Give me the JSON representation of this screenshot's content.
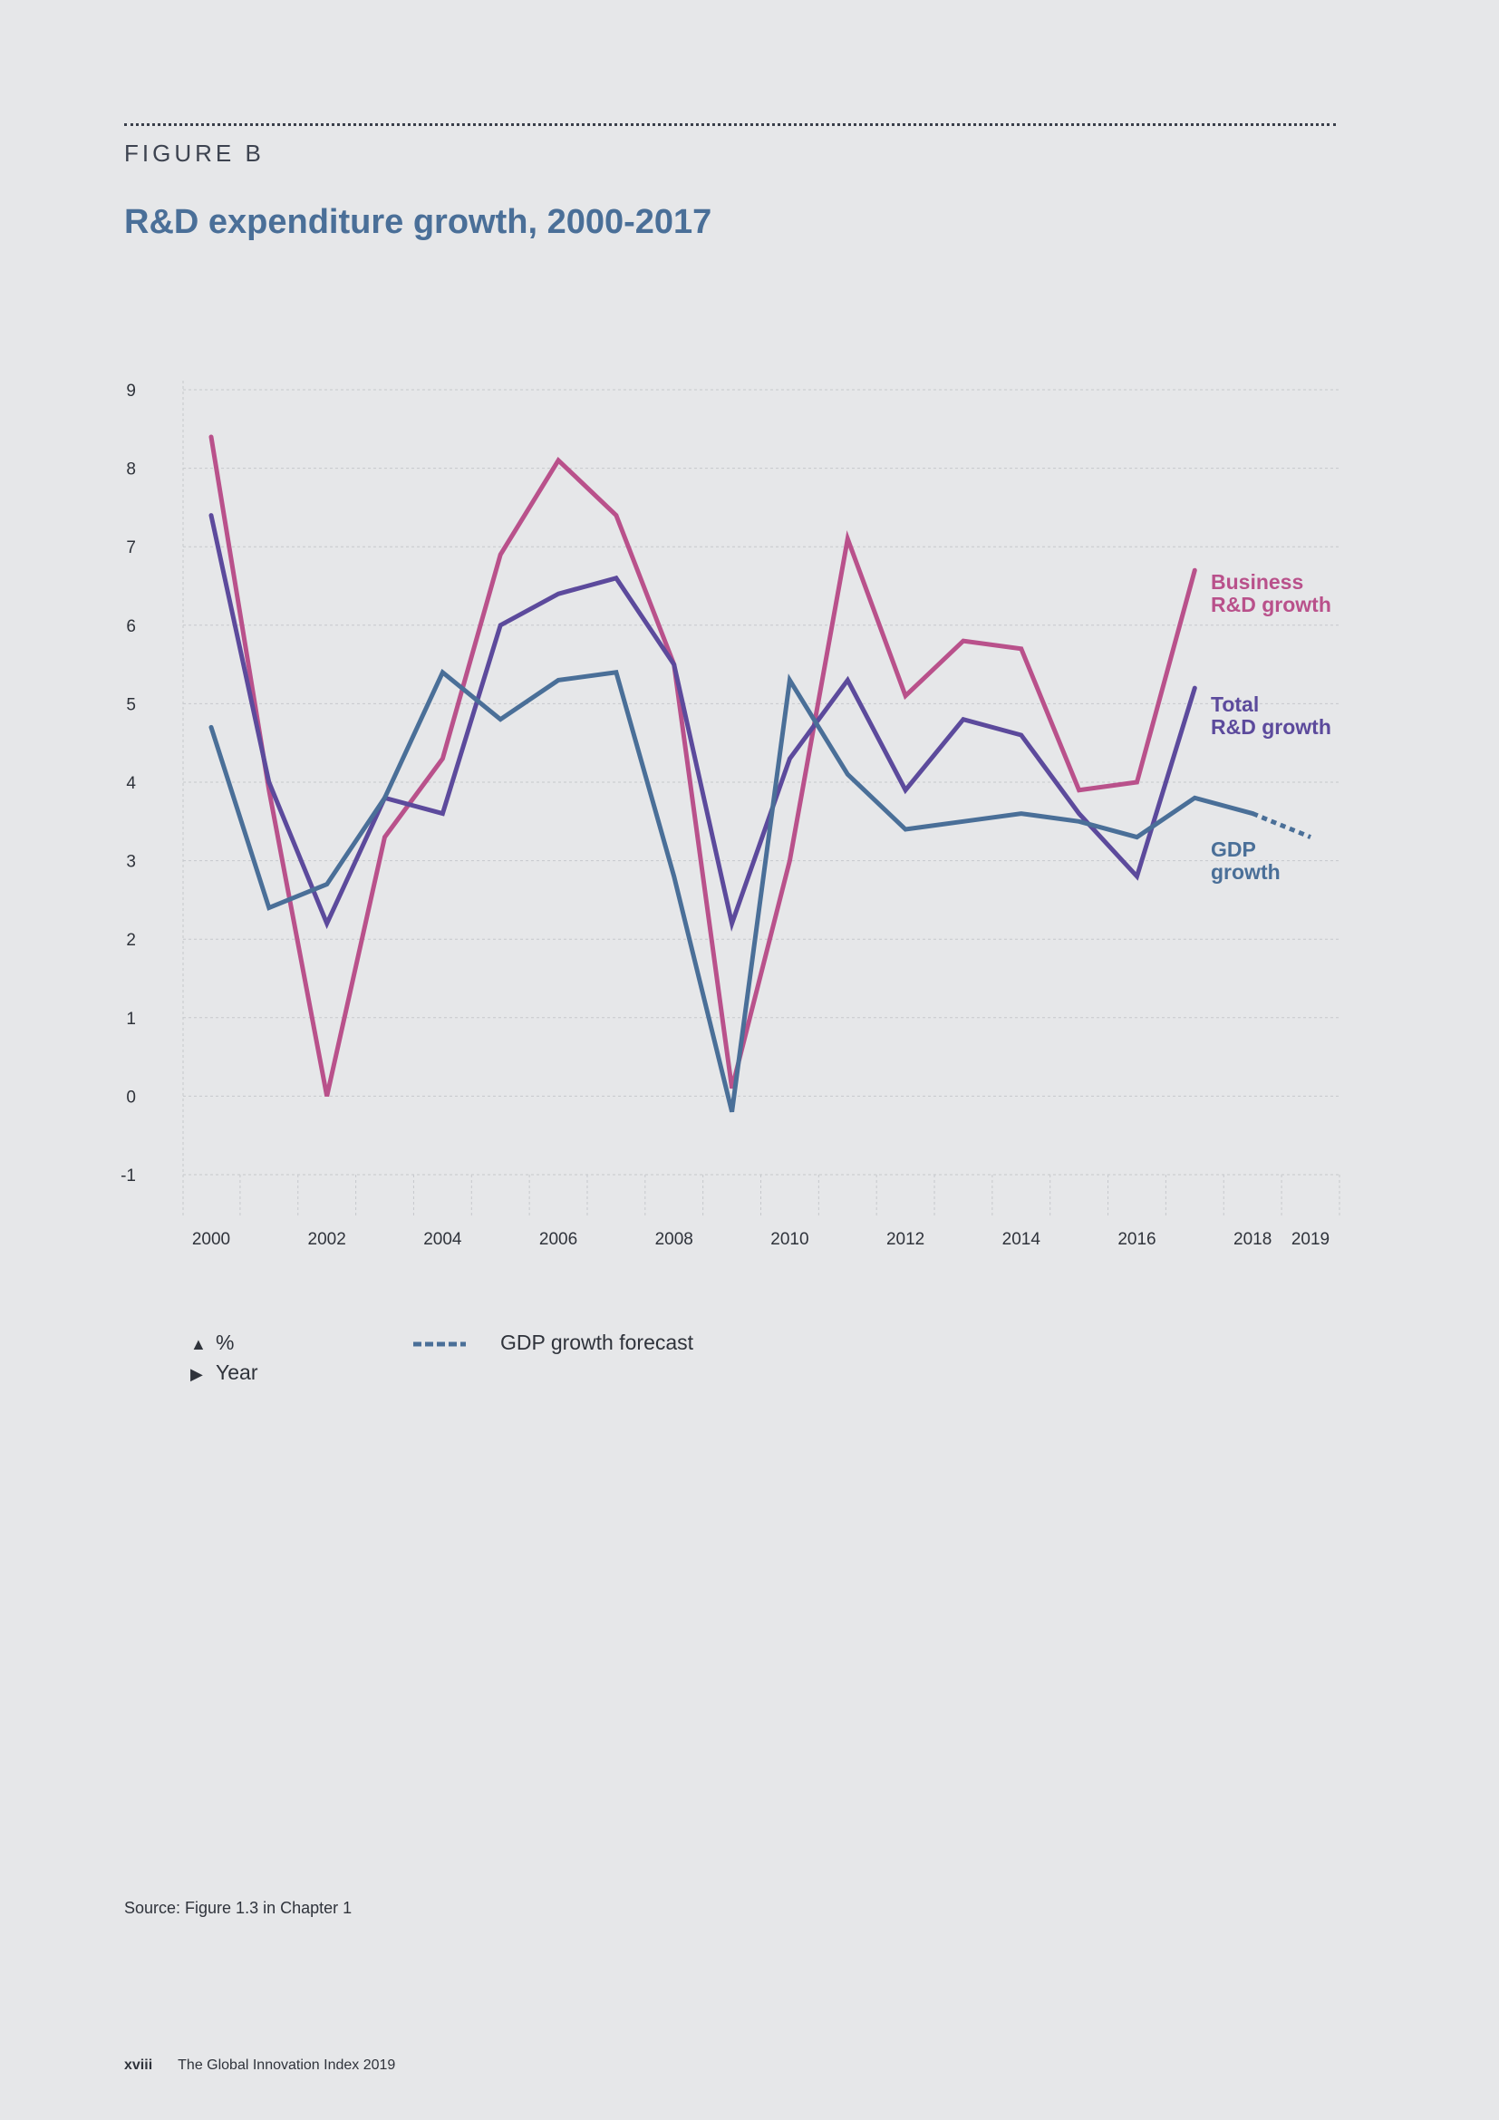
{
  "figure_label": "FIGURE B",
  "title": "R&D expenditure growth, 2000-2017",
  "legend": {
    "y_axis_unit": "%",
    "x_axis_unit": "Year",
    "forecast_label": "GDP growth forecast"
  },
  "source": "Source: Figure 1.3 in Chapter 1",
  "footer": {
    "page": "xviii",
    "publication": "The Global Innovation Index 2019"
  },
  "colors": {
    "business": "#b9518b",
    "total": "#5c4a9c",
    "gdp": "#4a6f98"
  },
  "chart_data": {
    "type": "line",
    "ylim": [
      -1,
      9
    ],
    "yticks": [
      -1,
      0,
      1,
      2,
      3,
      4,
      5,
      6,
      7,
      8,
      9
    ],
    "xlim": [
      2000,
      2019
    ],
    "xtick_labels": [
      "2000",
      "2002",
      "2004",
      "2006",
      "2008",
      "2010",
      "2012",
      "2014",
      "2016",
      "2018",
      "2019"
    ],
    "grid": true,
    "series": [
      {
        "key": "business",
        "name": "Business R&D growth",
        "label_lines": [
          "Business",
          "R&D growth"
        ],
        "x": [
          2000,
          2001,
          2002,
          2003,
          2004,
          2005,
          2006,
          2007,
          2008,
          2009,
          2010,
          2011,
          2012,
          2013,
          2014,
          2015,
          2016,
          2017
        ],
        "values": [
          8.4,
          3.9,
          0.0,
          3.3,
          4.3,
          6.9,
          8.1,
          7.4,
          5.5,
          0.1,
          3.0,
          7.1,
          5.1,
          5.8,
          5.7,
          3.9,
          4.0,
          6.7
        ]
      },
      {
        "key": "total",
        "name": "Total R&D growth",
        "label_lines": [
          "Total",
          "R&D growth"
        ],
        "x": [
          2000,
          2001,
          2002,
          2003,
          2004,
          2005,
          2006,
          2007,
          2008,
          2009,
          2010,
          2011,
          2012,
          2013,
          2014,
          2015,
          2016,
          2017
        ],
        "values": [
          7.4,
          4.0,
          2.2,
          3.8,
          3.6,
          6.0,
          6.4,
          6.6,
          5.5,
          2.2,
          4.3,
          5.3,
          3.9,
          4.8,
          4.6,
          3.6,
          2.8,
          5.2
        ]
      },
      {
        "key": "gdp",
        "name": "GDP growth",
        "label_lines": [
          "GDP",
          "growth"
        ],
        "x": [
          2000,
          2001,
          2002,
          2003,
          2004,
          2005,
          2006,
          2007,
          2008,
          2009,
          2010,
          2011,
          2012,
          2013,
          2014,
          2015,
          2016,
          2017,
          2018
        ],
        "values": [
          4.7,
          2.4,
          2.7,
          3.8,
          5.4,
          4.8,
          5.3,
          5.4,
          2.8,
          -0.2,
          5.3,
          4.1,
          3.4,
          3.5,
          3.6,
          3.5,
          3.3,
          3.8,
          3.6
        ],
        "forecast_x": [
          2018,
          2019
        ],
        "forecast_values": [
          3.6,
          3.3
        ]
      }
    ]
  }
}
